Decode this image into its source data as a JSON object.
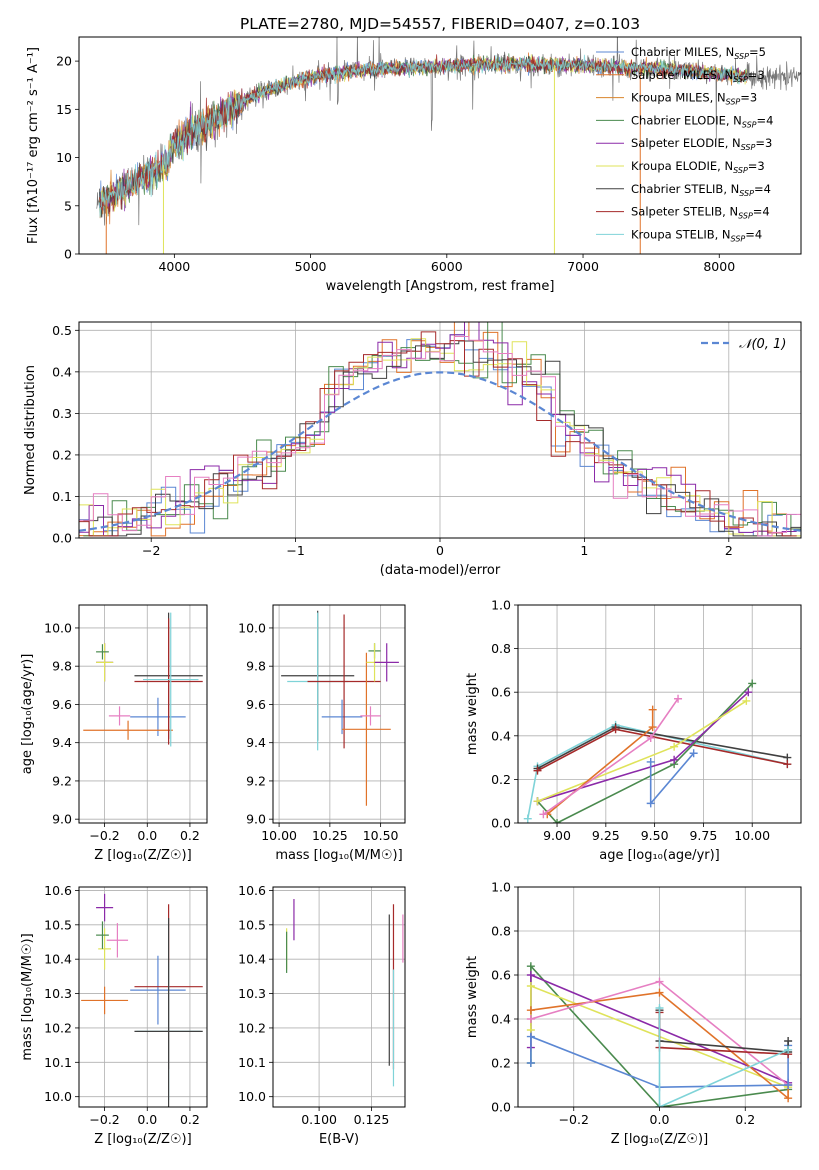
{
  "figure": {
    "title": "PLATE=2780, MJD=54557, FIBERID=0407, z=0.103"
  },
  "colors": {
    "Chabrier MILES": "#5b87d3",
    "Salpeter MILES": "#e0732a",
    "Kroupa MILES": "#d9842c",
    "Chabrier ELODIE": "#4a8a4e",
    "Salpeter ELODIE": "#8b2aa8",
    "Kroupa ELODIE": "#dfe35a",
    "Chabrier STELIB": "#404040",
    "Salpeter STELIB": "#a52a2a",
    "Kroupa STELIB": "#7fd3d8",
    "pink": "#e67fc2",
    "gauss": "#5b87d3"
  },
  "chart_data": [
    {
      "type": "line",
      "id": "spectrum",
      "title": "PLATE=2780, MJD=54557, FIBERID=0407, z=0.103",
      "xlabel": "wavelength [Angstrom, rest frame]",
      "ylabel": "Flux [fλ10⁻¹⁷ erg cm⁻² s⁻¹ A⁻¹]",
      "xlim": [
        3300,
        8600
      ],
      "ylim": [
        0,
        22.5
      ],
      "xticks": [
        "4000",
        "5000",
        "6000",
        "7000",
        "8000"
      ],
      "yticks": [
        "0",
        "5",
        "10",
        "15",
        "20"
      ],
      "legend_position": "right",
      "legend": [
        {
          "pre": "Chabrier MILES, N",
          "sub": "SSP",
          "post": "=5",
          "key": "Chabrier MILES"
        },
        {
          "pre": "Salpeter MILES, N",
          "sub": "SSP",
          "post": "=3",
          "key": "Salpeter MILES"
        },
        {
          "pre": "Kroupa MILES, N",
          "sub": "SSP",
          "post": "=3",
          "key": "Kroupa MILES"
        },
        {
          "pre": "Chabrier ELODIE, N",
          "sub": "SSP",
          "post": "=4",
          "key": "Chabrier ELODIE"
        },
        {
          "pre": "Salpeter ELODIE, N",
          "sub": "SSP",
          "post": "=3",
          "key": "Salpeter ELODIE"
        },
        {
          "pre": "Kroupa ELODIE, N",
          "sub": "SSP",
          "post": "=3",
          "key": "Kroupa ELODIE"
        },
        {
          "pre": "Chabrier STELIB, N",
          "sub": "SSP",
          "post": "=4",
          "key": "Chabrier STELIB"
        },
        {
          "pre": "Salpeter STELIB, N",
          "sub": "SSP",
          "post": "=4",
          "key": "Salpeter STELIB"
        },
        {
          "pre": "Kroupa STELIB, N",
          "sub": "SSP",
          "post": "=4",
          "key": "Kroupa STELIB"
        }
      ],
      "continuum": [
        [
          3430,
          5.0
        ],
        [
          3550,
          6.0
        ],
        [
          3700,
          7.5
        ],
        [
          3850,
          8.5
        ],
        [
          3950,
          9.5
        ],
        [
          4000,
          11.5
        ],
        [
          4200,
          13.0
        ],
        [
          4400,
          15.0
        ],
        [
          4600,
          16.5
        ],
        [
          4800,
          17.5
        ],
        [
          5000,
          18.3
        ],
        [
          5300,
          19.0
        ],
        [
          5600,
          19.2
        ],
        [
          6000,
          19.5
        ],
        [
          6400,
          19.7
        ],
        [
          6800,
          19.6
        ],
        [
          7200,
          19.4
        ],
        [
          7600,
          19.2
        ],
        [
          7900,
          18.8
        ],
        [
          8200,
          18.4
        ]
      ],
      "model_range": [
        3450,
        8200
      ],
      "data_range": [
        3430,
        8600
      ]
    },
    {
      "type": "histogram",
      "id": "residuals",
      "xlabel": "(data-model)/error",
      "ylabel": "Normed distribution",
      "xlim": [
        -2.5,
        2.5
      ],
      "ylim": [
        0,
        0.52
      ],
      "xticks": [
        "−2",
        "−1",
        "0",
        "1",
        "2"
      ],
      "yticks": [
        "0.0",
        "0.1",
        "0.2",
        "0.3",
        "0.4",
        "0.5"
      ],
      "bin_width": 0.1,
      "gauss_label": "𝒩(0, 1)",
      "series_keys": [
        "Chabrier MILES",
        "Salpeter MILES",
        "Chabrier ELODIE",
        "Salpeter ELODIE",
        "Kroupa ELODIE",
        "Chabrier STELIB",
        "Salpeter STELIB",
        "pink"
      ]
    },
    {
      "type": "errorbar",
      "id": "age_vs_Z",
      "xlabel": "Z [log₁₀(Z/Z☉)]",
      "ylabel": "age  [log₁₀(age/yr)]",
      "xlim": [
        -0.32,
        0.28
      ],
      "ylim": [
        8.98,
        10.12
      ],
      "xticks": [
        "−0.2",
        "0.0",
        "0.2"
      ],
      "yticks": [
        "9.0",
        "9.2",
        "9.4",
        "9.6",
        "9.8",
        "10.0"
      ],
      "points": [
        {
          "x": 0.05,
          "y": 9.535,
          "xerr": 0.13,
          "yerr": 0.1,
          "key": "Chabrier MILES"
        },
        {
          "x": -0.09,
          "y": 9.465,
          "xerr": 0.21,
          "yerr": 0.05,
          "key": "Salpeter MILES"
        },
        {
          "x": -0.2,
          "y": 9.82,
          "xerr": 0.04,
          "yerr": 0.1,
          "key": "Salpeter ELODIE"
        },
        {
          "x": -0.2,
          "y": 9.82,
          "xerr": 0.04,
          "yerr": 0.1,
          "key": "Kroupa ELODIE"
        },
        {
          "x": -0.21,
          "y": 9.875,
          "xerr": 0.03,
          "yerr": 0.04,
          "key": "Chabrier ELODIE"
        },
        {
          "x": -0.13,
          "y": 9.54,
          "xerr": 0.05,
          "yerr": 0.05,
          "key": "pink"
        },
        {
          "x": 0.1,
          "y": 9.75,
          "xerr": 0.16,
          "yerr": 0.33,
          "key": "Chabrier STELIB"
        },
        {
          "x": 0.1,
          "y": 9.72,
          "xerr": 0.16,
          "yerr": 0.33,
          "key": "Salpeter STELIB"
        },
        {
          "x": 0.11,
          "y": 9.73,
          "xerr": 0.13,
          "yerr": 0.35,
          "key": "Kroupa STELIB"
        }
      ]
    },
    {
      "type": "errorbar",
      "id": "age_vs_mass",
      "xlabel": "mass [log₁₀(M/M☉)]",
      "ylabel": "",
      "xlim": [
        9.97,
        10.62
      ],
      "ylim": [
        8.98,
        10.12
      ],
      "xticks": [
        "10.00",
        "10.25",
        "10.50"
      ],
      "yticks": [
        "9.0",
        "9.2",
        "9.4",
        "9.6",
        "9.8",
        "10.0"
      ],
      "points": [
        {
          "x": 10.19,
          "y": 9.75,
          "xerr": 0.18,
          "yerr": 0.34,
          "key": "Chabrier STELIB"
        },
        {
          "x": 10.19,
          "y": 9.72,
          "xerr": 0.15,
          "yerr": 0.36,
          "key": "Kroupa STELIB"
        },
        {
          "x": 10.31,
          "y": 9.535,
          "xerr": 0.1,
          "yerr": 0.09,
          "key": "Chabrier MILES"
        },
        {
          "x": 10.32,
          "y": 9.72,
          "xerr": 0.18,
          "yerr": 0.35,
          "key": "Salpeter STELIB"
        },
        {
          "x": 10.43,
          "y": 9.47,
          "xerr": 0.12,
          "yerr": 0.4,
          "key": "Salpeter MILES"
        },
        {
          "x": 10.45,
          "y": 9.54,
          "xerr": 0.05,
          "yerr": 0.05,
          "key": "pink"
        },
        {
          "x": 10.47,
          "y": 9.88,
          "xerr": 0.03,
          "yerr": 0.04,
          "key": "Chabrier ELODIE"
        },
        {
          "x": 10.47,
          "y": 9.82,
          "xerr": 0.04,
          "yerr": 0.1,
          "key": "Kroupa ELODIE"
        },
        {
          "x": 10.53,
          "y": 9.82,
          "xerr": 0.06,
          "yerr": 0.1,
          "key": "Salpeter ELODIE"
        }
      ]
    },
    {
      "type": "line",
      "id": "massweight_vs_age",
      "xlabel": "age  [log₁₀(age/yr)]",
      "ylabel": "mass weight",
      "xlim": [
        8.8,
        10.25
      ],
      "ylim": [
        0,
        1.0
      ],
      "xticks": [
        "9.00",
        "9.25",
        "9.50",
        "9.75",
        "10.00"
      ],
      "yticks": [
        "0.0",
        "0.2",
        "0.4",
        "0.6",
        "0.8",
        "1.0"
      ],
      "series": [
        {
          "key": "Kroupa STELIB",
          "x": [
            8.85,
            8.9,
            9.3,
            10.18
          ],
          "y": [
            0.02,
            0.26,
            0.45,
            0.27
          ]
        },
        {
          "key": "Chabrier STELIB",
          "x": [
            8.9,
            9.3,
            10.18
          ],
          "y": [
            0.25,
            0.44,
            0.3
          ]
        },
        {
          "key": "Salpeter STELIB",
          "x": [
            8.9,
            9.3,
            10.18
          ],
          "y": [
            0.24,
            0.43,
            0.27
          ]
        },
        {
          "key": "Chabrier ELODIE",
          "x": [
            8.9,
            9.0,
            9.6,
            10.0
          ],
          "y": [
            0.1,
            0.0,
            0.27,
            0.64
          ]
        },
        {
          "key": "Salpeter ELODIE",
          "x": [
            8.9,
            9.6,
            9.98
          ],
          "y": [
            0.1,
            0.29,
            0.6
          ]
        },
        {
          "key": "Kroupa ELODIE",
          "x": [
            8.9,
            9.6,
            9.97
          ],
          "y": [
            0.1,
            0.35,
            0.56
          ]
        },
        {
          "key": "Salpeter MILES",
          "x": [
            8.95,
            9.49,
            9.49
          ],
          "y": [
            0.04,
            0.44,
            0.52
          ]
        },
        {
          "key": "pink",
          "x": [
            8.93,
            9.48,
            9.62
          ],
          "y": [
            0.04,
            0.39,
            0.57
          ]
        },
        {
          "key": "Chabrier MILES",
          "x": [
            9.48,
            9.48,
            9.7
          ],
          "y": [
            0.28,
            0.09,
            0.32
          ]
        }
      ]
    },
    {
      "type": "errorbar",
      "id": "mass_vs_Z",
      "xlabel": "Z [log₁₀(Z/Z☉)]",
      "ylabel": "mass [log₁₀(M/M☉)]",
      "xlim": [
        -0.32,
        0.28
      ],
      "ylim": [
        9.97,
        10.61
      ],
      "xticks": [
        "−0.2",
        "0.0",
        "0.2"
      ],
      "yticks": [
        "10.0",
        "10.1",
        "10.2",
        "10.3",
        "10.4",
        "10.5",
        "10.6"
      ],
      "points": [
        {
          "x": -0.2,
          "y": 10.55,
          "xerr": 0.04,
          "yerr": 0.04,
          "key": "Salpeter ELODIE"
        },
        {
          "x": -0.2,
          "y": 10.43,
          "xerr": 0.03,
          "yerr": 0.06,
          "key": "Kroupa ELODIE"
        },
        {
          "x": -0.21,
          "y": 10.47,
          "xerr": 0.03,
          "yerr": 0.04,
          "key": "Chabrier ELODIE"
        },
        {
          "x": -0.14,
          "y": 10.455,
          "xerr": 0.05,
          "yerr": 0.05,
          "key": "pink"
        },
        {
          "x": -0.2,
          "y": 10.28,
          "xerr": 0.11,
          "yerr": 0.04,
          "key": "Salpeter MILES"
        },
        {
          "x": 0.05,
          "y": 10.31,
          "xerr": 0.13,
          "yerr": 0.1,
          "key": "Chabrier MILES"
        },
        {
          "x": 0.1,
          "y": 10.32,
          "xerr": 0.16,
          "yerr": 0.24,
          "key": "Salpeter STELIB"
        },
        {
          "x": 0.1,
          "y": 10.19,
          "xerr": 0.15,
          "yerr": 0.2,
          "key": "Kroupa STELIB"
        },
        {
          "x": 0.1,
          "y": 10.19,
          "xerr": 0.16,
          "yerr": 0.33,
          "key": "Chabrier STELIB"
        }
      ]
    },
    {
      "type": "errorbar",
      "id": "mass_vs_ebv",
      "xlabel": "E(B-V)",
      "ylabel": "",
      "xlim": [
        0.078,
        0.141
      ],
      "ylim": [
        9.97,
        10.61
      ],
      "xticks": [
        "0.100",
        "0.125"
      ],
      "yticks": [
        "10.0",
        "10.1",
        "10.2",
        "10.3",
        "10.4",
        "10.5",
        "10.6"
      ],
      "points": [
        {
          "x": 0.0845,
          "y": 10.43,
          "xerr": 0,
          "yerr": 0.06,
          "key": "Kroupa ELODIE"
        },
        {
          "x": 0.0845,
          "y": 10.42,
          "xerr": 0,
          "yerr": 0.06,
          "key": "Chabrier ELODIE"
        },
        {
          "x": 0.088,
          "y": 10.515,
          "xerr": 0,
          "yerr": 0.06,
          "key": "Salpeter ELODIE"
        },
        {
          "x": 0.1335,
          "y": 10.31,
          "xerr": 0,
          "yerr": 0.22,
          "key": "Chabrier STELIB"
        },
        {
          "x": 0.1355,
          "y": 10.32,
          "xerr": 0,
          "yerr": 0.24,
          "key": "Salpeter STELIB"
        },
        {
          "x": 0.1355,
          "y": 10.2,
          "xerr": 0,
          "yerr": 0.17,
          "key": "Kroupa STELIB"
        },
        {
          "x": 0.14,
          "y": 10.46,
          "xerr": 0,
          "yerr": 0.07,
          "key": "pink"
        }
      ]
    },
    {
      "type": "line",
      "id": "massweight_vs_Z",
      "xlabel": "Z [log₁₀(Z/Z☉)]",
      "ylabel": "mass weight",
      "xlim": [
        -0.33,
        0.33
      ],
      "ylim": [
        0,
        1.0
      ],
      "xticks": [
        "−0.2",
        "0.0",
        "0.2"
      ],
      "yticks": [
        "0.0",
        "0.2",
        "0.4",
        "0.6",
        "0.8",
        "1.0"
      ],
      "series": [
        {
          "key": "Chabrier ELODIE",
          "x": [
            -0.3,
            -0.3,
            0.0,
            0.3
          ],
          "y": [
            0.2,
            0.64,
            0.0,
            0.08
          ]
        },
        {
          "key": "Salpeter ELODIE",
          "x": [
            -0.3,
            -0.3,
            0.3
          ],
          "y": [
            0.27,
            0.6,
            0.11
          ]
        },
        {
          "key": "Kroupa ELODIE",
          "x": [
            -0.3,
            -0.3,
            0.3
          ],
          "y": [
            0.35,
            0.55,
            0.09
          ]
        },
        {
          "key": "Salpeter MILES",
          "x": [
            -0.3,
            0.0,
            0.3,
            0.3
          ],
          "y": [
            0.44,
            0.52,
            0.04,
            0.1
          ]
        },
        {
          "key": "pink",
          "x": [
            -0.3,
            0.0,
            0.3
          ],
          "y": [
            0.4,
            0.57,
            0.1
          ]
        },
        {
          "key": "Chabrier MILES",
          "x": [
            -0.3,
            -0.3,
            0.0,
            0.3,
            0.3
          ],
          "y": [
            0.2,
            0.32,
            0.09,
            0.1,
            0.28
          ]
        },
        {
          "key": "Chabrier STELIB",
          "x": [
            0.0,
            0.0,
            0.3,
            0.3
          ],
          "y": [
            0.44,
            0.3,
            0.25,
            0.3
          ]
        },
        {
          "key": "Salpeter STELIB",
          "x": [
            0.0,
            0.0,
            0.3
          ],
          "y": [
            0.43,
            0.27,
            0.24
          ]
        },
        {
          "key": "Kroupa STELIB",
          "x": [
            0.0,
            0.0,
            0.3
          ],
          "y": [
            0.45,
            0.0,
            0.26
          ]
        }
      ]
    }
  ]
}
